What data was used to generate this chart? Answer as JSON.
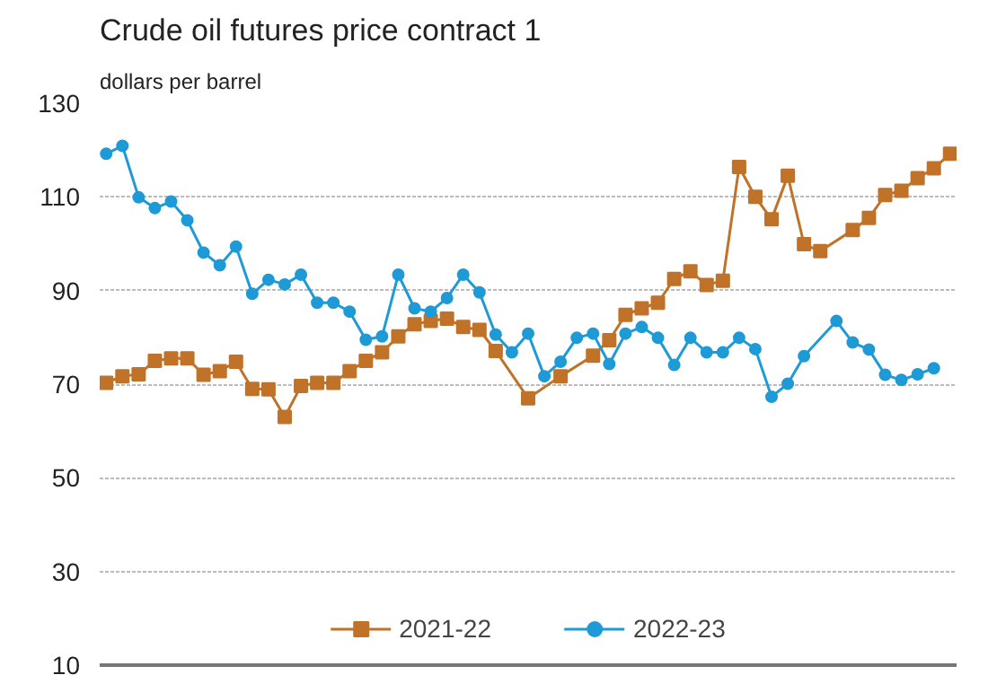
{
  "chart_data": {
    "type": "line",
    "title": "Crude oil futures price contract 1",
    "subtitle": "dollars per barrel",
    "categories": [
      null,
      null,
      null,
      null,
      null,
      null,
      null,
      null,
      null,
      null,
      null,
      null,
      null,
      null,
      null,
      null,
      null,
      null,
      null,
      null,
      null,
      null,
      null,
      null,
      null,
      null,
      null,
      null,
      null,
      null,
      null,
      null,
      null,
      null,
      null,
      null,
      null,
      null,
      null,
      null,
      null,
      null,
      null,
      null,
      null,
      null,
      null,
      null,
      null,
      null,
      null,
      null,
      null
    ],
    "ylim": [
      10,
      130
    ],
    "yticks": [
      10,
      30,
      50,
      70,
      90,
      110,
      130
    ],
    "grid": "y",
    "legend": "bottom",
    "tick_labels": "y",
    "line_style": "solid",
    "series": [
      {
        "name": "2021-22",
        "color": "#c07228",
        "marker": "square",
        "values": [
          70.3,
          71.7,
          72.1,
          75,
          75.5,
          75.5,
          72,
          72.8,
          74.8,
          69,
          68.9,
          63,
          69.6,
          70.3,
          70.3,
          72.8,
          75,
          76.8,
          80.2,
          82.8,
          83.5,
          84,
          82.2,
          81.6,
          77.1,
          null,
          67,
          null,
          71.7,
          null,
          76.1,
          79.4,
          84.8,
          86.2,
          87.4,
          92.5,
          94.1,
          91.2,
          92.1,
          116.4,
          110,
          105.2,
          114.5,
          99.9,
          98.4,
          null,
          102.9,
          105.5,
          110.4,
          111.3,
          114,
          116.1,
          119.2
        ]
      },
      {
        "name": "2022-23",
        "color": "#1e9ad6",
        "marker": "circle",
        "values": [
          119.2,
          120.9,
          109.9,
          107.6,
          109,
          105,
          98.1,
          95.4,
          99.4,
          89.3,
          92.3,
          91.3,
          93.4,
          87.4,
          87.4,
          85.5,
          79.5,
          80.2,
          93.4,
          86.2,
          85.5,
          88.4,
          93.4,
          89.6,
          80.6,
          76.8,
          80.8,
          71.7,
          74.8,
          79.9,
          80.8,
          74.3,
          80.8,
          82.2,
          79.9,
          74.1,
          79.9,
          76.8,
          76.8,
          79.9,
          77.5,
          67.3,
          70.1,
          76,
          null,
          83.5,
          78.9,
          77.4,
          72,
          70.9,
          72.1,
          73.4,
          null
        ]
      }
    ]
  }
}
